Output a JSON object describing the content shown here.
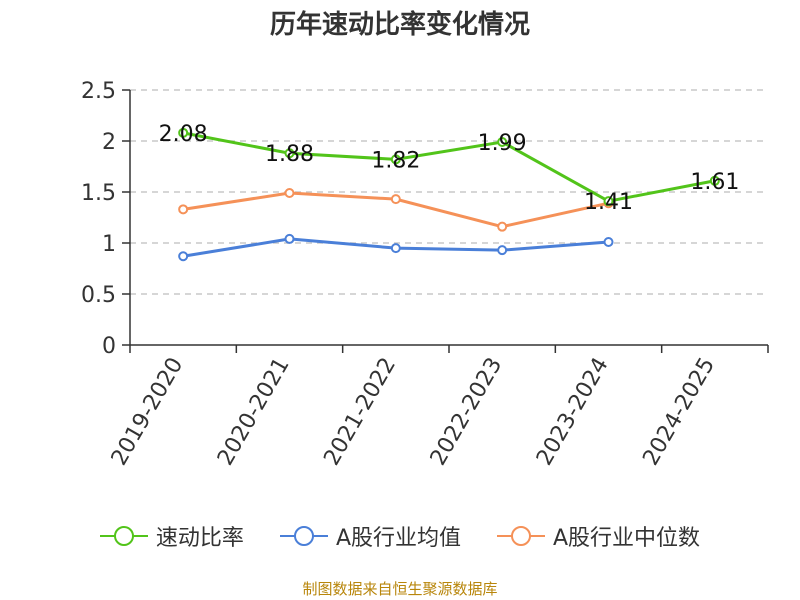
{
  "chart_data": {
    "type": "line",
    "title": "历年速动比率变化情况",
    "categories": [
      "2019-2020",
      "2020-2021",
      "2021-2022",
      "2022-2023",
      "2023-2024",
      "2024-2025"
    ],
    "ylim": [
      0,
      2.5
    ],
    "yticks": [
      "0",
      "0.5",
      "1",
      "1.5",
      "2",
      "2.5"
    ],
    "grid": true,
    "legend_position": "bottom",
    "series": [
      {
        "name": "速动比率",
        "color": "#52c41a",
        "values": [
          2.08,
          1.88,
          1.82,
          1.99,
          1.41,
          1.61
        ],
        "labels": [
          "2.08",
          "1.88",
          "1.82",
          "1.99",
          "1.41",
          "1.61"
        ]
      },
      {
        "name": "A股行业均值",
        "color": "#4a7fd8",
        "values": [
          0.87,
          1.04,
          0.95,
          0.93,
          1.01,
          null
        ]
      },
      {
        "name": "A股行业中位数",
        "color": "#f59158",
        "values": [
          1.33,
          1.49,
          1.43,
          1.16,
          1.39,
          null
        ]
      }
    ]
  },
  "source": "制图数据来自恒生聚源数据库"
}
